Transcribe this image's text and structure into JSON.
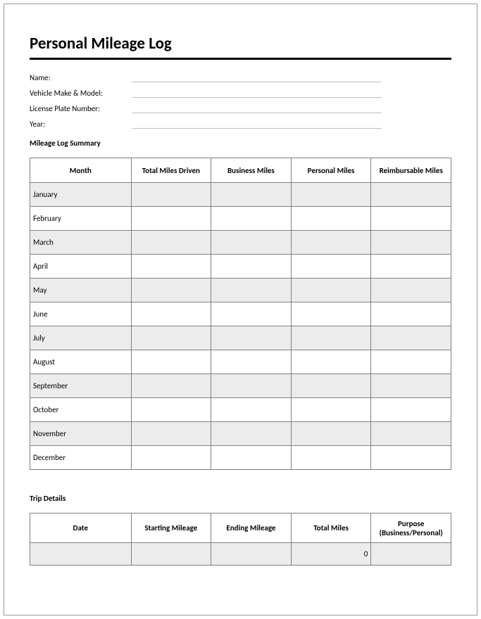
{
  "title": "Personal Mileage Log",
  "fields": {
    "name_label": "Name:",
    "vehicle_label": "Vehicle Make & Model:",
    "license_label": "License Plate Number:",
    "year_label": "Year:"
  },
  "summary": {
    "heading": "Mileage Log Summary",
    "columns": [
      "Month",
      "Total Miles Driven",
      "Business Miles",
      "Personal Miles",
      "Reimbursable Miles"
    ],
    "rows": [
      {
        "month": "January",
        "total": "",
        "business": "",
        "personal": "",
        "reimbursable": ""
      },
      {
        "month": "February",
        "total": "",
        "business": "",
        "personal": "",
        "reimbursable": ""
      },
      {
        "month": "March",
        "total": "",
        "business": "",
        "personal": "",
        "reimbursable": ""
      },
      {
        "month": "April",
        "total": "",
        "business": "",
        "personal": "",
        "reimbursable": ""
      },
      {
        "month": "May",
        "total": "",
        "business": "",
        "personal": "",
        "reimbursable": ""
      },
      {
        "month": "June",
        "total": "",
        "business": "",
        "personal": "",
        "reimbursable": ""
      },
      {
        "month": "July",
        "total": "",
        "business": "",
        "personal": "",
        "reimbursable": ""
      },
      {
        "month": "August",
        "total": "",
        "business": "",
        "personal": "",
        "reimbursable": ""
      },
      {
        "month": "September",
        "total": "",
        "business": "",
        "personal": "",
        "reimbursable": ""
      },
      {
        "month": "October",
        "total": "",
        "business": "",
        "personal": "",
        "reimbursable": ""
      },
      {
        "month": "November",
        "total": "",
        "business": "",
        "personal": "",
        "reimbursable": ""
      },
      {
        "month": "December",
        "total": "",
        "business": "",
        "personal": "",
        "reimbursable": ""
      }
    ]
  },
  "trip": {
    "heading": "Trip Details",
    "columns": [
      "Date",
      "Starting Mileage",
      "Ending Mileage",
      "Total Miles",
      "Purpose (Business/Personal)"
    ],
    "rows": [
      {
        "date": "",
        "start": "",
        "end": "",
        "total": "0",
        "purpose": ""
      }
    ]
  },
  "colors": {
    "border": "#808080",
    "row_alt": "#ececec",
    "field_line": "#bfbfbf",
    "page_border": "#999999",
    "title_rule": "#000000",
    "text": "#000000",
    "background": "#ffffff"
  }
}
